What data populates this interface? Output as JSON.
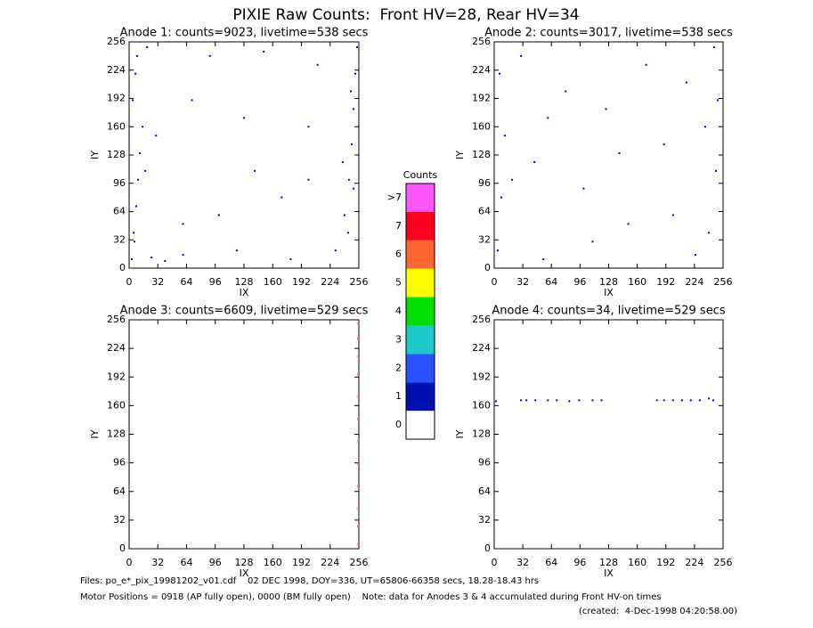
{
  "title": "PIXIE Raw Counts:  Front HV=28, Rear HV=34",
  "colorbar": {
    "title": "Counts",
    "ticks": [
      0,
      1,
      2,
      3,
      4,
      5,
      6,
      7,
      {
        "value": 8,
        "label": ">7"
      }
    ],
    "colors": [
      "#ffffff",
      "#0010b0",
      "#2850ff",
      "#1ec8c8",
      "#00e000",
      "#ffff00",
      "#ff6633",
      "#ff0020",
      "#ff55ff"
    ]
  },
  "footer": [
    "Files: po_e*_pix_19981202_v01.cdf    02 DEC 1998, DOY=336, UT=65806-66358 secs, 18.28-18.43 hrs",
    "Motor Positions = 0918 (AP fully open), 0000 (BM fully open)    Note: data for Anodes 3 & 4 accumulated during Front HV-on times",
    "(created:  4-Dec-1998 04:20:58.00)"
  ],
  "chart_data": [
    {
      "type": "scatter",
      "title": "Anode 1: counts=9023, livetime=538 secs",
      "x_label": "IX",
      "y_label": "IY",
      "xlim": [
        0,
        256
      ],
      "ylim": [
        0,
        256
      ],
      "xticks": [
        0,
        32,
        64,
        96,
        128,
        160,
        192,
        224,
        256
      ],
      "yticks": [
        0,
        32,
        64,
        96,
        128,
        160,
        192,
        224,
        256
      ],
      "color": "#0000c8",
      "x": [
        3,
        5,
        8,
        10,
        12,
        15,
        4,
        7,
        20,
        25,
        40,
        60,
        90,
        120,
        150,
        180,
        210,
        230,
        240,
        245,
        248,
        250,
        252,
        254,
        244,
        238,
        30,
        70,
        100,
        140,
        170,
        200,
        6,
        9,
        250,
        247,
        128,
        60,
        200,
        18
      ],
      "y": [
        10,
        40,
        70,
        100,
        130,
        160,
        190,
        220,
        250,
        12,
        8,
        15,
        240,
        20,
        245,
        10,
        230,
        20,
        60,
        100,
        140,
        180,
        220,
        250,
        40,
        120,
        150,
        190,
        60,
        110,
        80,
        160,
        30,
        240,
        90,
        200,
        170,
        50,
        100,
        110
      ]
    },
    {
      "type": "scatter",
      "title": "Anode 2: counts=3017, livetime=538 secs",
      "x_label": "IX",
      "y_label": "IY",
      "xlim": [
        0,
        256
      ],
      "ylim": [
        0,
        256
      ],
      "xticks": [
        0,
        32,
        64,
        96,
        128,
        160,
        192,
        224,
        256
      ],
      "yticks": [
        0,
        32,
        64,
        96,
        128,
        160,
        192,
        224,
        256
      ],
      "color": "#0000c8",
      "x": [
        4,
        8,
        12,
        6,
        30,
        55,
        80,
        110,
        140,
        170,
        200,
        225,
        240,
        248,
        250,
        246,
        236,
        20,
        60,
        100,
        150,
        190,
        215,
        45,
        125
      ],
      "y": [
        20,
        80,
        150,
        220,
        240,
        10,
        200,
        30,
        130,
        230,
        60,
        15,
        40,
        110,
        190,
        250,
        160,
        100,
        170,
        90,
        50,
        140,
        210,
        120,
        180
      ]
    },
    {
      "type": "scatter",
      "title": "Anode 3: counts=6609, livetime=529 secs",
      "x_label": "IX",
      "y_label": "IY",
      "xlim": [
        0,
        256
      ],
      "ylim": [
        0,
        256
      ],
      "xticks": [
        0,
        32,
        64,
        96,
        128,
        160,
        192,
        224,
        256
      ],
      "yticks": [
        0,
        32,
        64,
        96,
        128,
        160,
        192,
        224,
        256
      ],
      "color": "#ff55ff",
      "x": [
        255,
        255,
        255,
        255,
        255,
        255,
        255,
        255,
        255,
        255,
        255,
        255
      ],
      "y": [
        5,
        25,
        45,
        70,
        95,
        120,
        145,
        170,
        195,
        215,
        235,
        252
      ]
    },
    {
      "type": "scatter",
      "title": "Anode 4: counts=34, livetime=529 secs",
      "x_label": "IX",
      "y_label": "IY",
      "xlim": [
        0,
        256
      ],
      "ylim": [
        0,
        256
      ],
      "xticks": [
        0,
        32,
        64,
        96,
        128,
        160,
        192,
        224,
        256
      ],
      "yticks": [
        0,
        32,
        64,
        96,
        128,
        160,
        192,
        224,
        256
      ],
      "color": "#0000c8",
      "x": [
        2,
        30,
        36,
        46,
        60,
        70,
        84,
        95,
        110,
        120,
        182,
        190,
        200,
        210,
        220,
        230,
        240,
        245
      ],
      "y": [
        165,
        166,
        166,
        166,
        166,
        166,
        165,
        166,
        166,
        166,
        166,
        166,
        166,
        166,
        166,
        166,
        168,
        166
      ]
    }
  ]
}
